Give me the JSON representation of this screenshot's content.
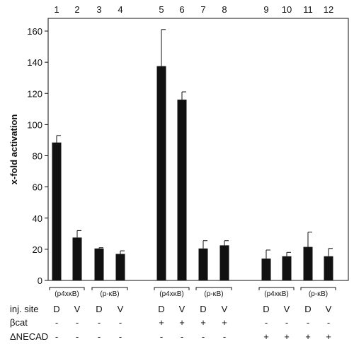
{
  "chart_data": {
    "type": "bar",
    "categories": [
      "1",
      "2",
      "3",
      "4",
      "5",
      "6",
      "7",
      "8",
      "9",
      "10",
      "11",
      "12"
    ],
    "values": [
      88.5,
      27.5,
      20.5,
      17,
      137.5,
      116,
      20.5,
      22.5,
      14,
      15.5,
      21.5,
      15.5
    ],
    "errors": [
      4.5,
      4.5,
      0.5,
      2,
      23.5,
      5,
      5,
      3,
      5.5,
      2.5,
      9.5,
      5
    ],
    "ylabel": "x-fold activation",
    "ylim": [
      0,
      170
    ],
    "yticks": [
      0,
      20,
      40,
      60,
      80,
      100,
      120,
      140,
      160
    ],
    "bar_color": "#111111",
    "grid": false,
    "group_labels": [
      "(p4xκB)",
      "(p-κB)",
      "(p4xκB)",
      "(p-κB)",
      "(p4xκB)",
      "(p-κB)"
    ],
    "rows": [
      {
        "label": "inj. site",
        "values": [
          "D",
          "V",
          "D",
          "V",
          "D",
          "V",
          "D",
          "V",
          "D",
          "V",
          "D",
          "V"
        ]
      },
      {
        "label": "βcat",
        "values": [
          "-",
          "-",
          "-",
          "-",
          "+",
          "+",
          "+",
          "+",
          "-",
          "-",
          "-",
          "-"
        ]
      },
      {
        "label": "ΔNECAD",
        "values": [
          "-",
          "-",
          "-",
          "-",
          "-",
          "-",
          "-",
          "-",
          "+",
          "+",
          "+",
          "+"
        ]
      }
    ]
  }
}
